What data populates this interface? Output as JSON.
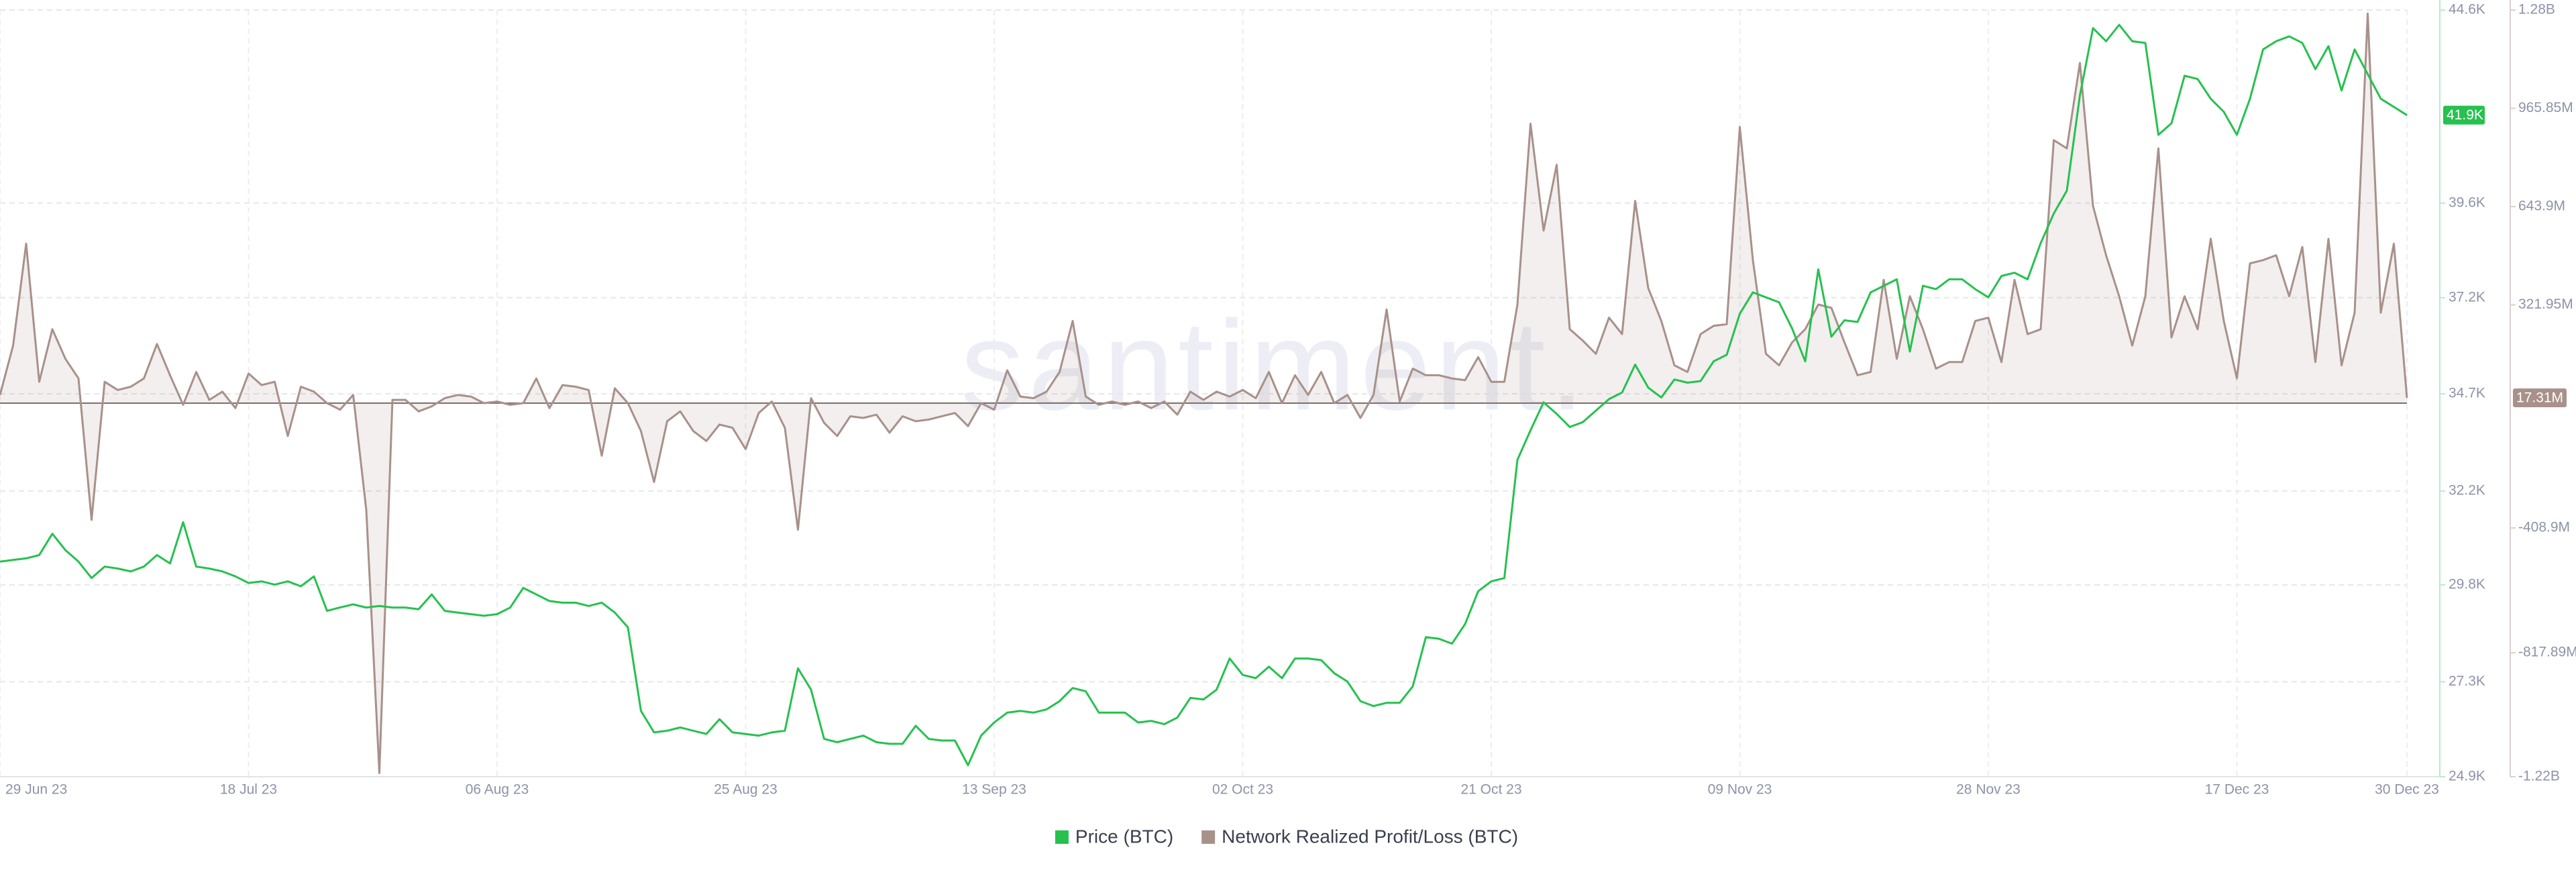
{
  "chart_data": {
    "type": "line",
    "watermark": "santiment.",
    "categories": [
      "29 Jun 23",
      null,
      null,
      null,
      null,
      null,
      null,
      null,
      null,
      null,
      null,
      null,
      null,
      null,
      null,
      null,
      null,
      null,
      null,
      "18 Jul 23",
      null,
      null,
      null,
      null,
      null,
      null,
      null,
      null,
      null,
      null,
      null,
      null,
      null,
      null,
      null,
      null,
      null,
      null,
      "06 Aug 23",
      null,
      null,
      null,
      null,
      null,
      null,
      null,
      null,
      null,
      null,
      null,
      null,
      null,
      null,
      null,
      null,
      null,
      null,
      "25 Aug 23",
      null,
      null,
      null,
      null,
      null,
      null,
      null,
      null,
      null,
      null,
      null,
      null,
      null,
      null,
      null,
      null,
      null,
      null,
      "13 Sep 23",
      null,
      null,
      null,
      null,
      null,
      null,
      null,
      null,
      null,
      null,
      null,
      null,
      null,
      null,
      null,
      null,
      null,
      null,
      "02 Oct 23",
      null,
      null,
      null,
      null,
      null,
      null,
      null,
      null,
      null,
      null,
      null,
      null,
      null,
      null,
      null,
      null,
      null,
      null,
      "21 Oct 23",
      null,
      null,
      null,
      null,
      null,
      null,
      null,
      null,
      null,
      null,
      null,
      null,
      null,
      null,
      null,
      null,
      null,
      null,
      "09 Nov 23",
      null,
      null,
      null,
      null,
      null,
      null,
      null,
      null,
      null,
      null,
      null,
      null,
      null,
      null,
      null,
      null,
      null,
      null,
      "28 Nov 23",
      null,
      null,
      null,
      null,
      null,
      null,
      null,
      null,
      null,
      null,
      null,
      null,
      null,
      null,
      null,
      null,
      null,
      null,
      "17 Dec 23",
      null,
      null,
      null,
      null,
      null,
      null,
      null,
      null,
      null,
      null,
      null,
      null,
      "30 Dec 23"
    ],
    "series": [
      {
        "name": "Price (BTC)",
        "color": "#26c14f",
        "last_label": "41.9K",
        "values": [
          30427,
          30470,
          30512,
          30596,
          31145,
          30723,
          30427,
          30005,
          30300,
          30250,
          30175,
          30300,
          30596,
          30380,
          31440,
          30300,
          30250,
          30175,
          30048,
          29880,
          29920,
          29837,
          29920,
          29795,
          30048,
          29162,
          29250,
          29330,
          29246,
          29288,
          29246,
          29246,
          29204,
          29584,
          29162,
          29120,
          29078,
          29036,
          29078,
          29246,
          29752,
          29584,
          29415,
          29373,
          29373,
          29288,
          29373,
          29120,
          28740,
          26590,
          26040,
          26083,
          26167,
          26083,
          25999,
          26378,
          26040,
          25999,
          25956,
          26040,
          26083,
          27686,
          27137,
          25872,
          25788,
          25872,
          25956,
          25788,
          25746,
          25746,
          26210,
          25872,
          25830,
          25830,
          25197,
          25956,
          26294,
          26547,
          26590,
          26547,
          26631,
          26842,
          27180,
          27095,
          26547,
          26547,
          26547,
          26294,
          26336,
          26252,
          26420,
          26927,
          26885,
          27137,
          27939,
          27517,
          27433,
          27728,
          27433,
          27939,
          27939,
          27897,
          27559,
          27348,
          26842,
          26716,
          26800,
          26800,
          27222,
          28487,
          28445,
          28319,
          28825,
          29668,
          29920,
          30005,
          33043,
          33802,
          34519,
          34224,
          33886,
          34013,
          34308,
          34603,
          34772,
          35489,
          34898,
          34645,
          35109,
          35025,
          35067,
          35573,
          35742,
          36797,
          37345,
          37218,
          37092,
          36417,
          35573,
          37936,
          36206,
          36628,
          36586,
          37345,
          37514,
          37682,
          35826,
          37514,
          37429,
          37682,
          37682,
          37429,
          37218,
          37767,
          37851,
          37682,
          38610,
          39370,
          39960,
          42407,
          44136,
          43798,
          44220,
          43798,
          43756,
          41394,
          41690,
          42913,
          42829,
          42322,
          41985,
          41394,
          42322,
          43588,
          43798,
          43925,
          43756,
          43081,
          43672,
          42533,
          43588,
          42955,
          42322,
          42111,
          41900
        ]
      },
      {
        "name": "Network Realized Profit/Loss (BTC)",
        "color": "#a8918a",
        "axis": "y2",
        "area": true,
        "last_label": "17.31M",
        "values": [
          26900000,
          188500000,
          522300000,
          70000000,
          242300000,
          145400000,
          80800000,
          -382300000,
          70000000,
          43100000,
          53900000,
          80800000,
          193900000,
          91500000,
          -5400000,
          102300000,
          10800000,
          37700000,
          -16200000,
          96900000,
          59200000,
          70000000,
          -107700000,
          53900000,
          37700000,
          0,
          -21500000,
          26900000,
          -350000000,
          -1211600000,
          10800000,
          10800000,
          -26900000,
          -10800000,
          16200000,
          26900000,
          21500000,
          0,
          5400000,
          -5400000,
          0,
          80800000,
          -16200000,
          59200000,
          53900000,
          43100000,
          -172300000,
          48500000,
          0,
          -91500000,
          -258500000,
          -59200000,
          -26900000,
          -91500000,
          -123900000,
          -70000000,
          -80800000,
          -150800000,
          -32300000,
          5400000,
          -80800000,
          -414600000,
          16200000,
          -64600000,
          -107700000,
          -43100000,
          -48500000,
          -37700000,
          -96900000,
          -43100000,
          -59200000,
          -53900000,
          -43100000,
          -32300000,
          -75400000,
          0,
          -21500000,
          107700000,
          21500000,
          16200000,
          37700000,
          102300000,
          269300000,
          21500000,
          -5400000,
          5400000,
          -5400000,
          5400000,
          -16200000,
          5400000,
          -37700000,
          37700000,
          10800000,
          37700000,
          21500000,
          43100000,
          16200000,
          102300000,
          0,
          91500000,
          26900000,
          102300000,
          0,
          26900000,
          -48500000,
          26900000,
          306900000,
          5400000,
          113100000,
          91500000,
          91500000,
          80800000,
          75400000,
          150800000,
          70000000,
          70000000,
          323100000,
          915500000,
          565400000,
          780800000,
          242300000,
          204600000,
          161600000,
          280000000,
          226200000,
          662400000,
          377000000,
          269300000,
          123900000,
          102300000,
          226200000,
          253100000,
          258500000,
          904700000,
          468500000,
          161600000,
          123900000,
          199200000,
          242300000,
          323100000,
          312300000,
          199200000,
          91500000,
          102300000,
          403900000,
          145400000,
          350000000,
          242300000,
          113100000,
          134600000,
          134600000,
          269300000,
          280000000,
          134600000,
          403900000,
          226200000,
          242300000,
          861600000,
          834700000,
          1114700000,
          646200000,
          484700000,
          350000000,
          188500000,
          350000000,
          834700000,
          215400000,
          350000000,
          242300000,
          538500000,
          269300000,
          80800000,
          457700000,
          468500000,
          484700000,
          350000000,
          511600000,
          134600000,
          538500000,
          123900000,
          296200000,
          1276200000,
          296200000,
          522300000,
          17310000
        ]
      }
    ],
    "ylim": [
      24900,
      44600
    ],
    "yticks": [
      {
        "value": 24900,
        "label": "24.9K"
      },
      {
        "value": 27340,
        "label": "27.3K"
      },
      {
        "value": 29830,
        "label": "29.8K"
      },
      {
        "value": 32240,
        "label": "32.2K"
      },
      {
        "value": 34740,
        "label": "34.7K"
      },
      {
        "value": 37210,
        "label": "37.2K"
      },
      {
        "value": 39640,
        "label": "39.6K"
      },
      {
        "value": 44600,
        "label": "44.6K"
      }
    ],
    "y2lim": [
      -1224000000,
      1287800000
    ],
    "y2ticks": [
      {
        "value": -1224000000,
        "label": "-1.22B"
      },
      {
        "value": -817890000,
        "label": "-817.89M"
      },
      {
        "value": -408900000,
        "label": "-408.9M"
      },
      {
        "value": 321950000,
        "label": "321.95M"
      },
      {
        "value": 643900000,
        "label": "643.9M"
      },
      {
        "value": 965850000,
        "label": "965.85M"
      },
      {
        "value": 1287800000,
        "label": "1.28B"
      }
    ],
    "grid": true,
    "legend": "bottom"
  }
}
